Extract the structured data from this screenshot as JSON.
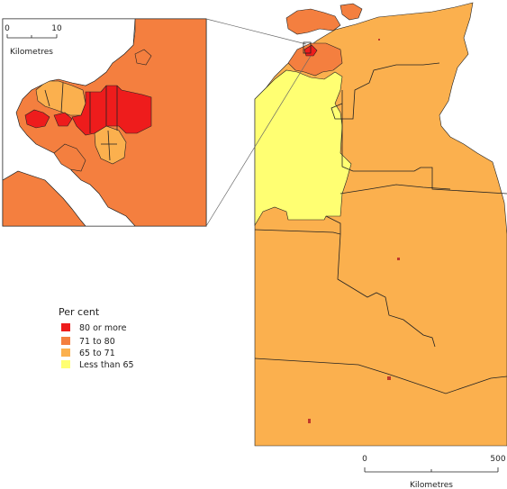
{
  "legend": {
    "title": "Per cent",
    "items": [
      {
        "label": "80 or more",
        "color": "#ee1c1c"
      },
      {
        "label": "71 to 80",
        "color": "#f47f3f"
      },
      {
        "label": "65 to 71",
        "color": "#fbb04e"
      },
      {
        "label": "Less than 65",
        "color": "#ffff72"
      }
    ]
  },
  "inset_scale": {
    "start": "0",
    "end": "10",
    "unit": "Kilometres"
  },
  "main_scale": {
    "start": "0",
    "end": "500",
    "unit": "Kilometres"
  },
  "colors": {
    "outline": "#222222",
    "water": "#ffffff"
  }
}
